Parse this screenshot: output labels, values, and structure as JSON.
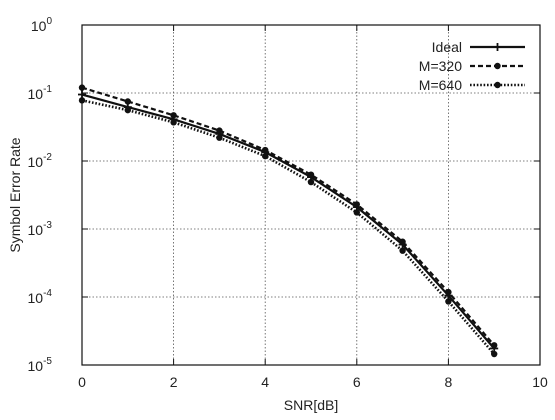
{
  "chart_data": {
    "type": "line",
    "title": "",
    "xlabel": "SNR[dB]",
    "ylabel": "Symbol Error Rate",
    "xlim": [
      0,
      10
    ],
    "ylim": [
      1e-05,
      1
    ],
    "y_scale": "log",
    "grid": true,
    "legend_position": "top-right",
    "x_ticks": [
      {
        "value": 0,
        "label": "0"
      },
      {
        "value": 2,
        "label": "2"
      },
      {
        "value": 4,
        "label": "4"
      },
      {
        "value": 6,
        "label": "6"
      },
      {
        "value": 8,
        "label": "8"
      },
      {
        "value": 10,
        "label": "10"
      }
    ],
    "y_ticks": [
      {
        "value": 1,
        "base": "10",
        "exp": "0"
      },
      {
        "value": 0.1,
        "base": "10",
        "exp": "-1"
      },
      {
        "value": 0.01,
        "base": "10",
        "exp": "-2"
      },
      {
        "value": 0.001,
        "base": "10",
        "exp": "-3"
      },
      {
        "value": 0.0001,
        "base": "10",
        "exp": "-4"
      },
      {
        "value": 1e-05,
        "base": "10",
        "exp": "-5"
      }
    ],
    "x": [
      0,
      1,
      2,
      3,
      4,
      5,
      6,
      7,
      8,
      9
    ],
    "series": [
      {
        "name": "Ideal",
        "style": "solid",
        "marker": "plus",
        "values": [
          0.095,
          0.062,
          0.041,
          0.025,
          0.0135,
          0.0058,
          0.0021,
          0.00059,
          0.000105,
          1.75e-05
        ]
      },
      {
        "name": "M=320",
        "style": "dashed",
        "marker": "circle",
        "values": [
          0.12,
          0.075,
          0.047,
          0.028,
          0.0145,
          0.0063,
          0.0023,
          0.00065,
          0.000118,
          1.95e-05
        ]
      },
      {
        "name": "M=640",
        "style": "dotted",
        "marker": "circle",
        "values": [
          0.078,
          0.056,
          0.037,
          0.022,
          0.0118,
          0.0049,
          0.00175,
          0.00048,
          8.6e-05,
          1.45e-05
        ]
      }
    ]
  }
}
